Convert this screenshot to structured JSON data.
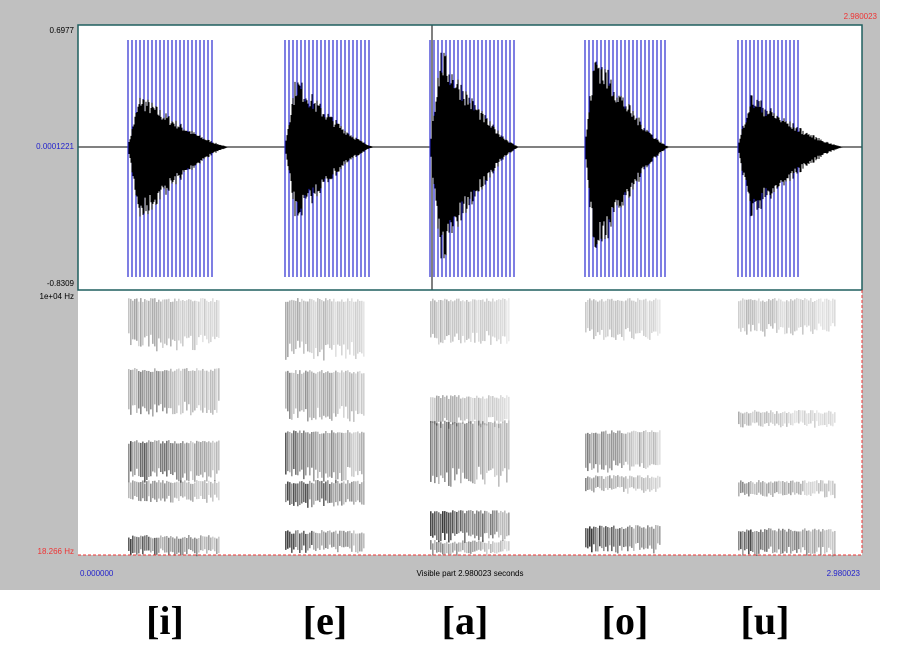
{
  "window": {
    "top_right_time": "2.980023",
    "waveform": {
      "max_label": "0.6977",
      "mid_label": "0.0001221",
      "min_label": "-0.8309"
    },
    "spectrogram": {
      "max_label": "1e+04 Hz",
      "min_label": "18.266 Hz"
    },
    "footer": {
      "start_time": "0.000000",
      "visible_part": "Visible part 2.980023 seconds",
      "end_time": "2.980023"
    }
  },
  "vowels": [
    "[i]",
    "[e]",
    "[a]",
    "[o]",
    "[u]"
  ]
}
